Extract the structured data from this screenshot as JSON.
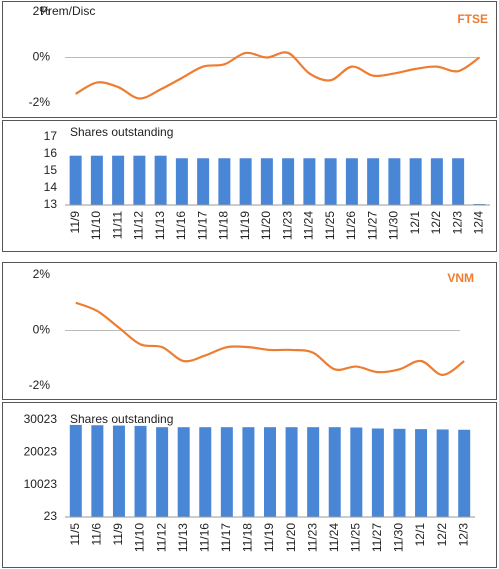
{
  "chart_data": [
    {
      "type": "line",
      "title": "FTSE",
      "ylabel": "Prem/Disc",
      "color": "#ed7d31",
      "values": [
        -1.6,
        -1.1,
        -1.3,
        -1.8,
        -1.4,
        -0.9,
        -0.4,
        -0.3,
        0.2,
        0.0,
        0.2,
        -0.7,
        -1.0,
        -0.4,
        -0.8,
        -0.7,
        -0.5,
        -0.4,
        -0.6,
        0.0
      ],
      "ylim": [
        -2,
        2
      ],
      "yticks": [
        {
          "value": 2,
          "label": "2%"
        },
        {
          "value": 0,
          "label": "0%"
        },
        {
          "value": -2,
          "label": "-2%"
        }
      ]
    },
    {
      "type": "bar",
      "ylabel": "Shares outstanding",
      "color": "#4a86d6",
      "categories": [
        "11/9",
        "11/10",
        "11/11",
        "11/12",
        "11/13",
        "11/16",
        "11/17",
        "11/18",
        "11/19",
        "11/20",
        "11/23",
        "11/24",
        "11/25",
        "11/26",
        "11/27",
        "11/30",
        "12/1",
        "12/2",
        "12/3",
        "12/4"
      ],
      "values": [
        15.9,
        15.9,
        15.9,
        15.9,
        15.9,
        15.75,
        15.75,
        15.75,
        15.75,
        15.75,
        15.75,
        15.75,
        15.75,
        15.75,
        15.75,
        15.75,
        15.75,
        15.75,
        15.75,
        13
      ],
      "ylim": [
        13,
        17
      ],
      "yticks": [
        13,
        14,
        15,
        16,
        17
      ]
    },
    {
      "type": "line",
      "title": "VNM",
      "color": "#ed7d31",
      "values": [
        1.0,
        0.7,
        0.1,
        -0.5,
        -0.6,
        -1.1,
        -0.9,
        -0.6,
        -0.6,
        -0.7,
        -0.7,
        -0.8,
        -1.4,
        -1.3,
        -1.5,
        -1.4,
        -1.1,
        -1.6,
        -1.1
      ],
      "ylim": [
        -2,
        2
      ],
      "yticks": [
        {
          "value": 2,
          "label": "2%"
        },
        {
          "value": 0,
          "label": "0%"
        },
        {
          "value": -2,
          "label": "-2%"
        }
      ]
    },
    {
      "type": "bar",
      "ylabel": "Shares outstanding",
      "color": "#4a86d6",
      "categories": [
        "11/5",
        "11/6",
        "11/9",
        "11/10",
        "11/12",
        "11/13",
        "11/16",
        "11/17",
        "11/18",
        "11/19",
        "11/20",
        "11/23",
        "11/24",
        "11/25",
        "11/27",
        "11/30",
        "12/1",
        "12/2",
        "12/3"
      ],
      "values": [
        28500,
        28400,
        28300,
        28200,
        27800,
        27800,
        27800,
        27800,
        27800,
        27800,
        27800,
        27800,
        27800,
        27700,
        27400,
        27300,
        27200,
        27100,
        27000
      ],
      "ylim": [
        23,
        30023
      ],
      "yticks": [
        23,
        10023,
        20023,
        30023
      ]
    }
  ]
}
